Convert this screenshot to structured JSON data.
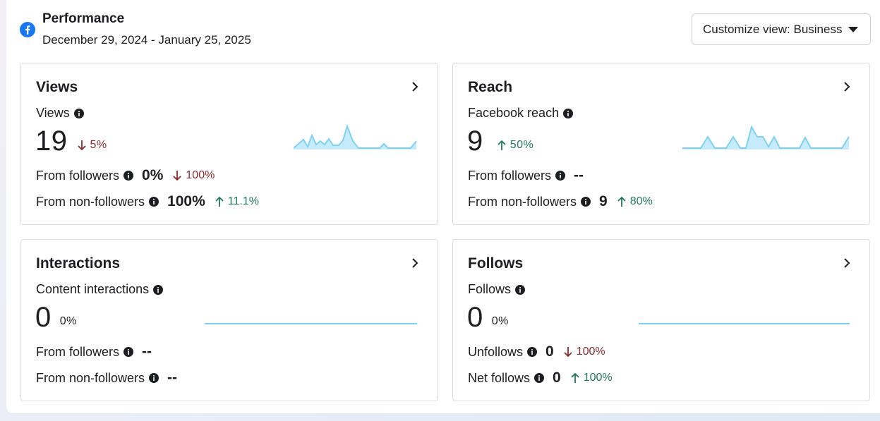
{
  "header": {
    "title": "Performance",
    "date_range": "December 29, 2024 - January 25, 2025",
    "customize_label": "Customize view: Business",
    "brand_color": "#1877f2"
  },
  "cards": {
    "views": {
      "title": "Views",
      "metric_label": "Views",
      "value": "19",
      "delta": "5%",
      "delta_direction": "down",
      "rows": [
        {
          "label": "From followers",
          "value": "0%",
          "delta": "100%",
          "direction": "down"
        },
        {
          "label": "From non-followers",
          "value": "100%",
          "delta": "11.1%",
          "direction": "up"
        }
      ]
    },
    "reach": {
      "title": "Reach",
      "metric_label": "Facebook reach",
      "value": "9",
      "delta": "50%",
      "delta_direction": "up",
      "rows": [
        {
          "label": "From followers",
          "value": "--",
          "delta": "",
          "direction": "none"
        },
        {
          "label": "From non-followers",
          "value": "9",
          "delta": "80%",
          "direction": "up"
        }
      ]
    },
    "interactions": {
      "title": "Interactions",
      "metric_label": "Content interactions",
      "value": "0",
      "delta": "0%",
      "delta_direction": "none",
      "rows": [
        {
          "label": "From followers",
          "value": "--",
          "delta": "",
          "direction": "none"
        },
        {
          "label": "From non-followers",
          "value": "--",
          "delta": "",
          "direction": "none"
        }
      ]
    },
    "follows": {
      "title": "Follows",
      "metric_label": "Follows",
      "value": "0",
      "delta": "0%",
      "delta_direction": "none",
      "rows": [
        {
          "label": "Unfollows",
          "value": "0",
          "delta": "100%",
          "direction": "down"
        },
        {
          "label": "Net follows",
          "value": "0",
          "delta": "100%",
          "direction": "up"
        }
      ]
    }
  },
  "colors": {
    "down": "#8b2a2e",
    "up": "#1f7a55",
    "spark_line": "#7fd1f1",
    "spark_fill": "#c6ebfa"
  },
  "icons": {
    "brand": "facebook-logo-icon",
    "info": "info-icon",
    "chevron": "chevron-right-icon",
    "caret": "caret-down-icon",
    "arrow_up": "arrow-up-icon",
    "arrow_down": "arrow-down-icon"
  }
}
